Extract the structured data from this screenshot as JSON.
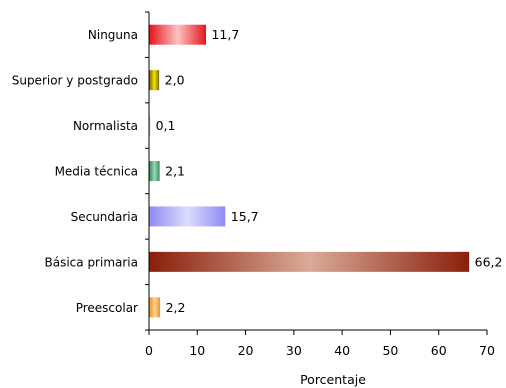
{
  "chart_data": {
    "type": "bar",
    "orientation": "horizontal",
    "title": "",
    "xlabel": "Porcentaje",
    "ylabel": "",
    "xlim": [
      0,
      70
    ],
    "xticks": [
      "0",
      "10",
      "20",
      "30",
      "40",
      "50",
      "60",
      "70"
    ],
    "grid": false,
    "legend": "none",
    "categories": [
      "Ninguna",
      "Superior y postgrado",
      "Normalista",
      "Media técnica",
      "Secundaria",
      "Básica primaria",
      "Preescolar"
    ],
    "values": [
      11.7,
      2.0,
      0.1,
      2.1,
      15.7,
      66.2,
      2.2
    ],
    "value_labels": [
      "11,7",
      "2,0",
      "0,1",
      "2,1",
      "15,7",
      "66,2",
      "2,2"
    ],
    "bar_colors": [
      {
        "dark": "#e8141c",
        "light": "#fbc3c3"
      },
      {
        "dark": "#7a6a00",
        "light": "#f2e300"
      },
      {
        "dark": "#8a6fb0",
        "light": "#d9c8f0"
      },
      {
        "dark": "#2f8f62",
        "light": "#9fd7b8"
      },
      {
        "dark": "#8f8cf2",
        "light": "#dcdcff"
      },
      {
        "dark": "#8a1f0a",
        "light": "#d9ab98"
      },
      {
        "dark": "#f0941e",
        "light": "#fbd29b"
      }
    ]
  }
}
